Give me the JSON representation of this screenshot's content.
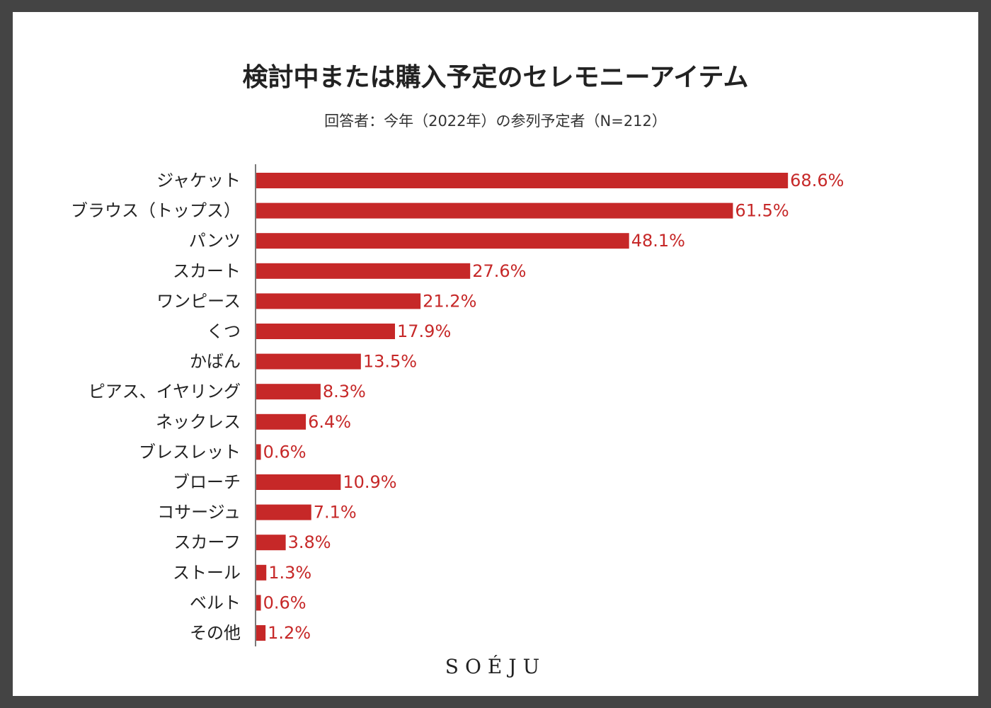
{
  "chart_data": {
    "type": "bar",
    "orientation": "horizontal",
    "title": "検討中または購入予定のセレモニーアイテム",
    "subtitle": "回答者：今年（2022年）の参列予定者（N=212）",
    "categories": [
      "ジャケット",
      "ブラウス（トップス）",
      "パンツ",
      "スカート",
      "ワンピース",
      "くつ",
      "かばん",
      "ピアス、イヤリング",
      "ネックレス",
      "ブレスレット",
      "ブローチ",
      "コサージュ",
      "スカーフ",
      "ストール",
      "ベルト",
      "その他"
    ],
    "values": [
      68.6,
      61.5,
      48.1,
      27.6,
      21.2,
      17.9,
      13.5,
      8.3,
      6.4,
      0.6,
      10.9,
      7.1,
      3.8,
      1.3,
      0.6,
      1.2
    ],
    "value_labels": [
      "68.6%",
      "61.5%",
      "48.1%",
      "27.6%",
      "21.2%",
      "17.9%",
      "13.5%",
      "8.3%",
      "6.4%",
      "0.6%",
      "10.9%",
      "7.1%",
      "3.8%",
      "1.3%",
      "0.6%",
      "1.2%"
    ],
    "unit": "%",
    "xlim": [
      0,
      100
    ],
    "grid": false,
    "bar_color": "#c62828",
    "label_color": "#c62828"
  },
  "brand": "SOÉJU",
  "colors": {
    "frame": "#444444",
    "background": "#ffffff",
    "text": "#222222"
  }
}
